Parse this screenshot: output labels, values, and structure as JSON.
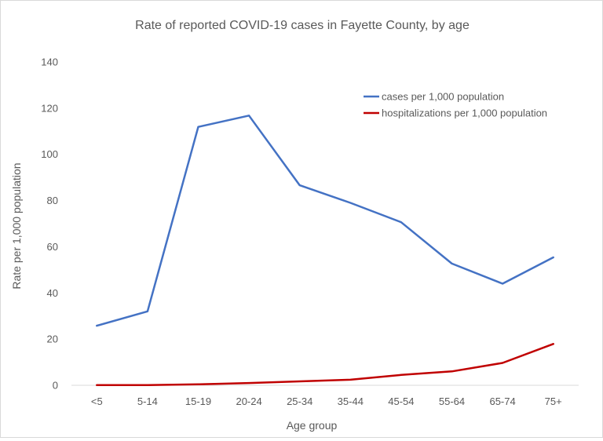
{
  "chart_data": {
    "type": "line",
    "title": "Rate of reported COVID-19 cases in Fayette County, by age",
    "xlabel": "Age group",
    "ylabel": "Rate per 1,000 population",
    "ylim": [
      0,
      140
    ],
    "yticks": [
      0,
      20,
      40,
      60,
      80,
      100,
      120,
      140
    ],
    "grid": false,
    "legend_position": "top-right",
    "categories": [
      "<5",
      "5-14",
      "15-19",
      "20-24",
      "25-34",
      "35-44",
      "45-54",
      "55-64",
      "65-74",
      "75+"
    ],
    "series": [
      {
        "name": "cases per 1,000 population",
        "color": "#4472c4",
        "values": [
          25.8,
          32.0,
          111.9,
          116.8,
          86.6,
          79.0,
          70.6,
          52.7,
          44.0,
          55.4
        ]
      },
      {
        "name": "hospitalizations per 1,000 population",
        "color": "#c00000",
        "values": [
          0.1,
          0.1,
          0.4,
          1.0,
          1.7,
          2.4,
          4.5,
          6.0,
          9.7,
          17.9
        ]
      }
    ]
  }
}
